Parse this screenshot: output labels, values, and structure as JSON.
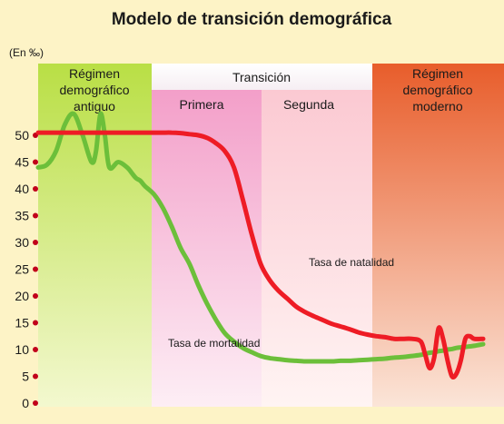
{
  "chart_data": {
    "type": "line",
    "title": "Modelo de transición demográfica",
    "ylabel": "(En ‰)",
    "ylim": [
      0,
      50
    ],
    "yticks": [
      0,
      5,
      10,
      15,
      20,
      25,
      30,
      35,
      40,
      45,
      50
    ],
    "phases": [
      {
        "lines": [
          "Régimen",
          "demográfico",
          "antiguo"
        ],
        "color": "#bfe24e"
      },
      {
        "lines": [
          "Transición"
        ],
        "color": "#ffffff",
        "sub": [
          {
            "label": "Primera",
            "color": "#f4a9cf"
          },
          {
            "label": "Segunda",
            "color": "#fbd3da"
          }
        ]
      },
      {
        "lines": [
          "Régimen",
          "demográfico",
          "moderno"
        ],
        "color": "#ea6a33"
      }
    ],
    "x": [
      0,
      2,
      4,
      6,
      8,
      10,
      12,
      13,
      14,
      15,
      16,
      18,
      20,
      21,
      22,
      23,
      24,
      26,
      28,
      30,
      32,
      34,
      36,
      38,
      40,
      42,
      44,
      46,
      48,
      50,
      52,
      54,
      56,
      58,
      60,
      62,
      64,
      66,
      68,
      70,
      72,
      74,
      76,
      78,
      80,
      82,
      84,
      86,
      87,
      88,
      89,
      90,
      91,
      92,
      93,
      94,
      95,
      96,
      97,
      98,
      100
    ],
    "series": [
      {
        "name": "Tasa de natalidad",
        "color": "#ee1c25",
        "values": [
          50.5,
          50.5,
          50.5,
          50.5,
          50.5,
          50.5,
          50.5,
          50.5,
          50.5,
          50.5,
          50.5,
          50.5,
          50.5,
          50.5,
          50.5,
          50.5,
          50.5,
          50.5,
          50.5,
          50.5,
          50.4,
          50.2,
          50,
          49.5,
          48.5,
          47,
          44,
          38,
          31.5,
          26,
          23,
          21,
          19.5,
          18,
          17,
          16.2,
          15.5,
          14.8,
          14.3,
          13.8,
          13.2,
          12.8,
          12.5,
          12.3,
          12,
          12,
          12,
          11.5,
          9,
          6.5,
          8.5,
          14,
          12,
          8,
          5,
          5.5,
          8,
          12,
          12.5,
          12,
          12
        ]
      },
      {
        "name": "Tasa de mortalidad",
        "color": "#6cbf3a",
        "values": [
          44,
          44.5,
          47,
          52,
          54,
          50,
          45,
          47,
          54,
          50,
          44,
          45,
          44,
          43,
          42,
          41.5,
          40.5,
          39,
          36.5,
          33,
          29,
          26,
          22,
          18.5,
          15.5,
          13,
          11.5,
          10.3,
          9.5,
          8.8,
          8.4,
          8.2,
          8,
          7.9,
          7.8,
          7.8,
          7.8,
          7.8,
          7.9,
          7.9,
          8,
          8.1,
          8.2,
          8.3,
          8.5,
          8.6,
          8.8,
          9,
          9.2,
          9.4,
          9.5,
          9.7,
          9.8,
          10,
          10.1,
          10.3,
          10.4,
          10.5,
          10.6,
          10.7,
          11
        ]
      }
    ],
    "annotations": [
      {
        "text": "Tasa de natalidad"
      },
      {
        "text": "Tasa de mortalidad"
      }
    ]
  }
}
